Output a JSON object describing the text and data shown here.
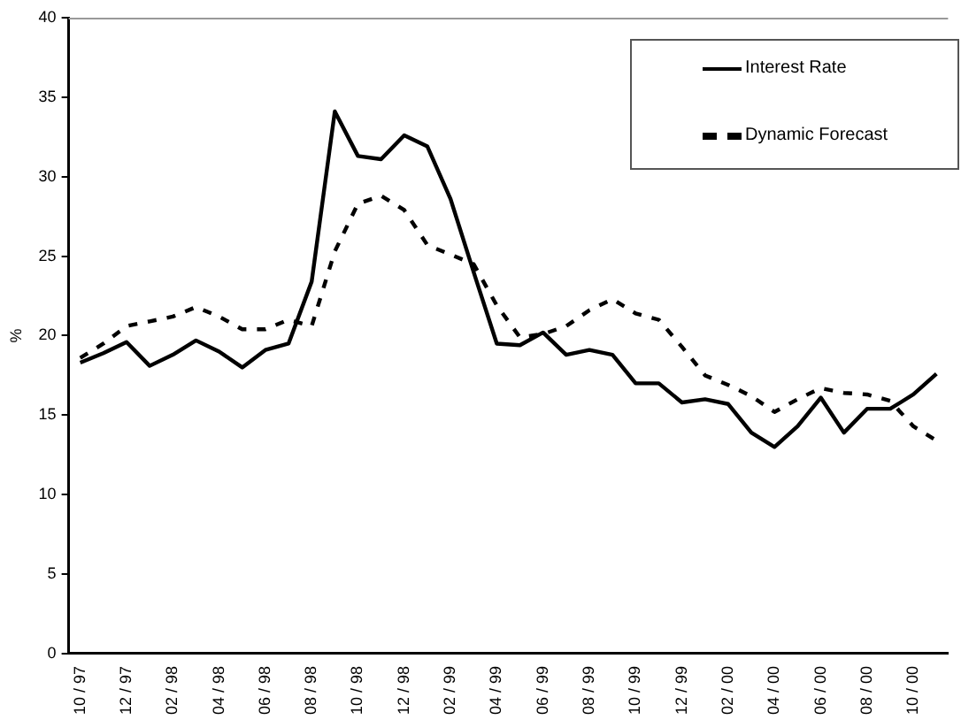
{
  "chart_data": {
    "type": "line",
    "ylabel": "%",
    "categories": [
      "10 / 97",
      null,
      "12 / 97",
      null,
      "02 / 98",
      null,
      "04 / 98",
      null,
      "06 / 98",
      null,
      "08 / 98",
      null,
      "10 / 98",
      null,
      "12 / 98",
      null,
      "02 / 99",
      null,
      "04 / 99",
      null,
      "06 / 99",
      null,
      "08 / 99",
      null,
      "10 / 99",
      null,
      "12 / 99",
      null,
      "02 / 00",
      null,
      "04 / 00",
      null,
      "06 / 00",
      null,
      "08 / 00",
      null,
      "10 / 00",
      null
    ],
    "series": [
      {
        "name": "Interest Rate",
        "color": "#000000",
        "line_style": "solid",
        "values": [
          18.3,
          18.9,
          19.6,
          18.1,
          18.8,
          19.7,
          19.0,
          18.0,
          19.1,
          19.5,
          23.4,
          34.1,
          31.3,
          31.1,
          32.6,
          31.9,
          28.6,
          24.0,
          19.5,
          19.4,
          20.2,
          18.8,
          19.1,
          18.8,
          17.0,
          17.0,
          15.8,
          16.0,
          15.7,
          13.9,
          13.0,
          14.3,
          16.1,
          13.9,
          15.4,
          15.4,
          16.3,
          17.6
        ]
      },
      {
        "name": "Dynamic Forecast",
        "color": "#000000",
        "line_style": "dashed",
        "values": [
          18.6,
          19.5,
          20.6,
          20.9,
          21.2,
          21.8,
          21.2,
          20.4,
          20.4,
          21.0,
          20.6,
          25.3,
          28.3,
          28.8,
          27.9,
          25.7,
          25.1,
          24.5,
          21.9,
          19.9,
          20.1,
          20.6,
          21.6,
          22.3,
          21.4,
          21.0,
          19.3,
          17.5,
          16.9,
          16.2,
          15.2,
          16.0,
          16.7,
          16.4,
          16.3,
          15.9,
          14.3,
          13.4
        ]
      }
    ],
    "ylim": [
      0,
      40
    ],
    "yticks": [
      0,
      5,
      10,
      15,
      20,
      25,
      30,
      35,
      40
    ],
    "grid": false,
    "legend": "top right",
    "marker": "none"
  }
}
